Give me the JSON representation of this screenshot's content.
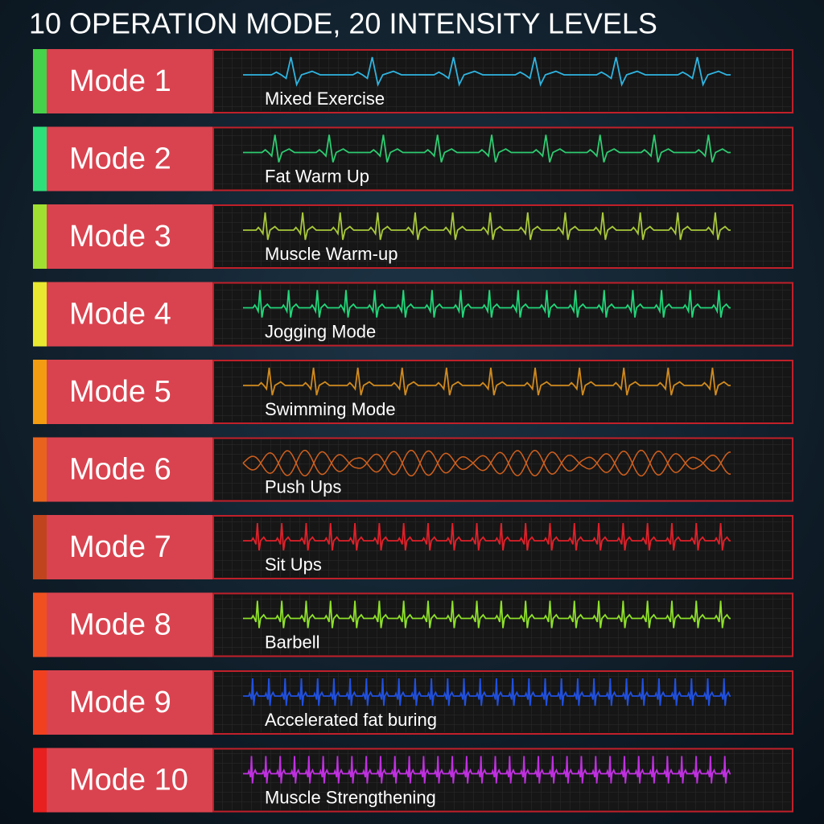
{
  "header": {
    "title": "10 OPERATION MODE, 20 INTENSITY LEVELS"
  },
  "modes": [
    {
      "label": "Mode 1",
      "name": "Mixed Exercise"
    },
    {
      "label": "Mode 2",
      "name": "Fat Warm Up"
    },
    {
      "label": "Mode 3",
      "name": "Muscle Warm-up"
    },
    {
      "label": "Mode 4",
      "name": "Jogging Mode"
    },
    {
      "label": "Mode 5",
      "name": "Swimming Mode"
    },
    {
      "label": "Mode 6",
      "name": "Push Ups"
    },
    {
      "label": "Mode 7",
      "name": "Sit Ups"
    },
    {
      "label": "Mode 8",
      "name": "Barbell"
    },
    {
      "label": "Mode 9",
      "name": "Accelerated fat buring"
    },
    {
      "label": "Mode 10",
      "name": "Muscle Strengthening"
    }
  ]
}
